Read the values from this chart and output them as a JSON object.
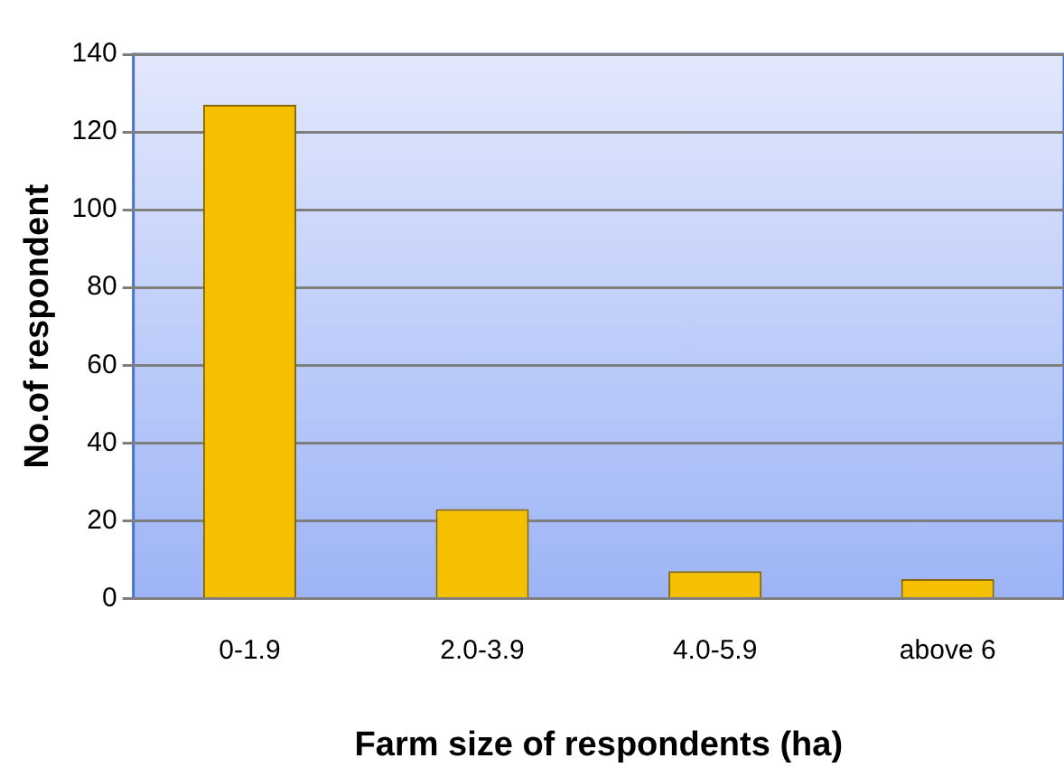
{
  "chart_data": {
    "type": "bar",
    "xlabel": "Farm size of respondents (ha)",
    "ylabel": "No.of respondent",
    "categories": [
      "0-1.9",
      "2.0-3.9",
      "4.0-5.9",
      "above 6"
    ],
    "values": [
      127,
      23,
      7,
      5
    ],
    "color": "#f5c000",
    "ylim": [
      0,
      140
    ],
    "yticks": [
      0,
      20,
      40,
      60,
      80,
      100,
      120,
      140
    ],
    "grid": "y",
    "legend": false
  }
}
